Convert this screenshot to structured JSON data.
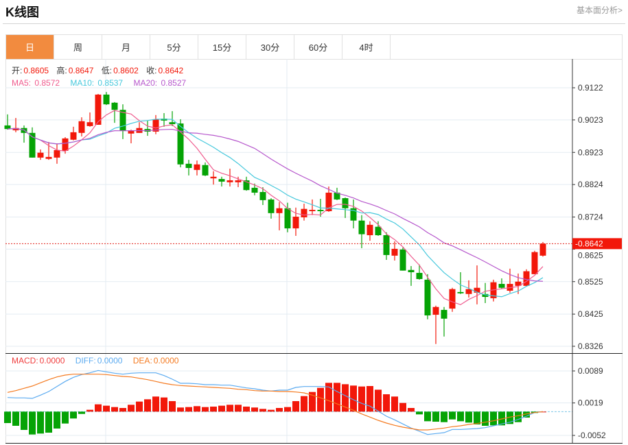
{
  "header": {
    "title": "K线图",
    "fundamental_link": "基本面分析>"
  },
  "tabs": [
    {
      "label": "日",
      "active": true
    },
    {
      "label": "周"
    },
    {
      "label": "月"
    },
    {
      "label": "5分"
    },
    {
      "label": "15分"
    },
    {
      "label": "30分"
    },
    {
      "label": "60分"
    },
    {
      "label": "4时"
    }
  ],
  "legend": {
    "open_label": "开:",
    "open": "0.8605",
    "high_label": "高:",
    "high": "0.8647",
    "low_label": "低:",
    "low": "0.8602",
    "close_label": "收:",
    "close": "0.8642",
    "ma5_label": "MA5: ",
    "ma5": "0.8572",
    "ma10_label": "MA10: ",
    "ma10": "0.8537",
    "ma20_label": "MA20: ",
    "ma20": "0.8527"
  },
  "macd_legend": {
    "macd_label": "MACD:",
    "macd": "0.0000",
    "diff_label": "DIFF:",
    "diff": "0.0000",
    "dea_label": "DEA:",
    "dea": "0.0000"
  },
  "current_price": "0.8642",
  "colors": {
    "up": "#f2180a",
    "down": "#05a305",
    "ma5": "#ef5b8e",
    "ma10": "#46c8dc",
    "ma20": "#b657cc",
    "diff": "#5aaaf0",
    "dea": "#f47a20",
    "accent": "#f28b3f"
  },
  "chart_data": [
    {
      "type": "candlestick",
      "price_ticks": [
        "0.9122",
        "0.9023",
        "0.8923",
        "0.8824",
        "0.8724",
        "0.8625",
        "0.8525",
        "0.8425",
        "0.8326"
      ],
      "ylim": [
        0.8326,
        0.9122
      ],
      "grid": true,
      "ohlc_order": [
        "open",
        "high",
        "low",
        "close"
      ],
      "candles": [
        [
          0.9006,
          0.904,
          0.8993,
          0.8995
        ],
        [
          0.8991,
          0.9029,
          0.8985,
          0.8998
        ],
        [
          0.8998,
          0.9006,
          0.8953,
          0.8983
        ],
        [
          0.8983,
          0.9,
          0.8907,
          0.8907
        ],
        [
          0.8907,
          0.8932,
          0.89,
          0.8922
        ],
        [
          0.8903,
          0.8955,
          0.89,
          0.8909
        ],
        [
          0.8907,
          0.8949,
          0.8888,
          0.893
        ],
        [
          0.8928,
          0.897,
          0.8919,
          0.8966
        ],
        [
          0.8962,
          0.9002,
          0.896,
          0.8985
        ],
        [
          0.8983,
          0.9031,
          0.8972,
          0.9019
        ],
        [
          0.9004,
          0.9046,
          0.9002,
          0.9016
        ],
        [
          0.9008,
          0.9103,
          0.9008,
          0.9101
        ],
        [
          0.9101,
          0.9109,
          0.9069,
          0.9071
        ],
        [
          0.9076,
          0.9078,
          0.9014,
          0.9054
        ],
        [
          0.9054,
          0.9071,
          0.8964,
          0.8989
        ],
        [
          0.8981,
          0.8993,
          0.8951,
          0.8991
        ],
        [
          0.8983,
          0.9016,
          0.8983,
          0.8998
        ],
        [
          0.8995,
          0.9021,
          0.8974,
          0.8987
        ],
        [
          0.8987,
          0.9038,
          0.8979,
          0.9025
        ],
        [
          0.9027,
          0.9044,
          0.9002,
          0.9021
        ],
        [
          0.9016,
          0.905,
          0.9004,
          0.901
        ],
        [
          0.9012,
          0.9025,
          0.8877,
          0.8886
        ],
        [
          0.8888,
          0.89,
          0.8852,
          0.8875
        ],
        [
          0.8869,
          0.8898,
          0.8852,
          0.8886
        ],
        [
          0.8884,
          0.8892,
          0.885,
          0.8852
        ],
        [
          0.8843,
          0.8865,
          0.8824,
          0.8848
        ],
        [
          0.8841,
          0.8848,
          0.8818,
          0.8833
        ],
        [
          0.8831,
          0.8873,
          0.8818,
          0.8837
        ],
        [
          0.8831,
          0.8848,
          0.8816,
          0.8837
        ],
        [
          0.8837,
          0.8848,
          0.8805,
          0.8807
        ],
        [
          0.8814,
          0.8827,
          0.8791,
          0.8799
        ],
        [
          0.8801,
          0.8816,
          0.8761,
          0.8776
        ],
        [
          0.8778,
          0.8782,
          0.8719,
          0.8736
        ],
        [
          0.8736,
          0.877,
          0.8683,
          0.8751
        ],
        [
          0.8751,
          0.8768,
          0.8677,
          0.8689
        ],
        [
          0.8689,
          0.8753,
          0.8666,
          0.8725
        ],
        [
          0.8723,
          0.8765,
          0.8713,
          0.8749
        ],
        [
          0.8742,
          0.8778,
          0.873,
          0.8746
        ],
        [
          0.8746,
          0.878,
          0.8725,
          0.8742
        ],
        [
          0.8742,
          0.8818,
          0.874,
          0.8799
        ],
        [
          0.8799,
          0.8814,
          0.8776,
          0.8778
        ],
        [
          0.8782,
          0.8784,
          0.8721,
          0.8751
        ],
        [
          0.8751,
          0.8778,
          0.8689,
          0.8713
        ],
        [
          0.8713,
          0.873,
          0.8628,
          0.8671
        ],
        [
          0.8668,
          0.8711,
          0.8651,
          0.87
        ],
        [
          0.8694,
          0.8711,
          0.8666,
          0.8668
        ],
        [
          0.8668,
          0.8677,
          0.8592,
          0.8607
        ],
        [
          0.8605,
          0.8649,
          0.859,
          0.8626
        ],
        [
          0.8624,
          0.863,
          0.8559,
          0.8559
        ],
        [
          0.8561,
          0.8573,
          0.8512,
          0.8554
        ],
        [
          0.8552,
          0.8578,
          0.8531,
          0.8533
        ],
        [
          0.8531,
          0.8548,
          0.8409,
          0.8421
        ],
        [
          0.8423,
          0.8451,
          0.8333,
          0.8447
        ],
        [
          0.8438,
          0.8447,
          0.8356,
          0.8411
        ],
        [
          0.8442,
          0.8506,
          0.8432,
          0.8502
        ],
        [
          0.8493,
          0.8554,
          0.8487,
          0.8489
        ],
        [
          0.8487,
          0.8529,
          0.8476,
          0.8502
        ],
        [
          0.8491,
          0.8575,
          0.8455,
          0.8506
        ],
        [
          0.8487,
          0.8521,
          0.8459,
          0.8478
        ],
        [
          0.8474,
          0.8531,
          0.8464,
          0.8523
        ],
        [
          0.8518,
          0.8535,
          0.8502,
          0.8506
        ],
        [
          0.8497,
          0.8565,
          0.8491,
          0.8518
        ],
        [
          0.8512,
          0.855,
          0.8487,
          0.8525
        ],
        [
          0.8512,
          0.8563,
          0.851,
          0.8557
        ],
        [
          0.8548,
          0.862,
          0.8548,
          0.8616
        ],
        [
          0.8605,
          0.8647,
          0.8602,
          0.8642
        ]
      ],
      "moving_averages": [
        5,
        10,
        20
      ]
    },
    {
      "type": "bar+line",
      "ticks": [
        "0.0089",
        "0.0019",
        "-0.0052"
      ],
      "ylim": [
        -0.0052,
        0.0089
      ],
      "macd_hist": [
        -0.0025,
        -0.0031,
        -0.004,
        -0.005,
        -0.0048,
        -0.0046,
        -0.0037,
        -0.0026,
        -0.0015,
        -0.0005,
        0.0004,
        0.0016,
        0.0013,
        0.001,
        0.0008,
        0.0015,
        0.0022,
        0.0027,
        0.0033,
        0.0031,
        0.0023,
        0.0009,
        0.001,
        0.0012,
        0.001,
        0.0011,
        0.0013,
        0.0015,
        0.0015,
        0.0011,
        0.0009,
        0.0006,
        0.0004,
        0.0008,
        0.001,
        0.0023,
        0.0034,
        0.0043,
        0.0052,
        0.0063,
        0.0063,
        0.006,
        0.0057,
        0.0055,
        0.0056,
        0.0048,
        0.0038,
        0.0033,
        0.0019,
        0.0008,
        -0.0006,
        -0.0021,
        -0.0022,
        -0.0023,
        -0.0017,
        -0.0021,
        -0.0024,
        -0.0028,
        -0.0031,
        -0.003,
        -0.003,
        -0.0027,
        -0.0023,
        -0.0013,
        -0.0003,
        0.0
      ],
      "diff": [
        0.0031,
        0.003,
        0.003,
        0.0029,
        0.0036,
        0.0044,
        0.0055,
        0.0066,
        0.0075,
        0.0081,
        0.0085,
        0.009,
        0.0087,
        0.0084,
        0.0082,
        0.0084,
        0.0085,
        0.0085,
        0.0085,
        0.0079,
        0.0071,
        0.0062,
        0.0062,
        0.0061,
        0.0059,
        0.0059,
        0.0058,
        0.0058,
        0.0055,
        0.0052,
        0.005,
        0.0047,
        0.0045,
        0.0047,
        0.0047,
        0.0053,
        0.0055,
        0.0055,
        0.0055,
        0.0054,
        0.0044,
        0.0035,
        0.0026,
        0.0018,
        0.0012,
        0.0001,
        -0.001,
        -0.0018,
        -0.0027,
        -0.0036,
        -0.0043,
        -0.005,
        -0.0048,
        -0.0046,
        -0.0039,
        -0.0039,
        -0.0038,
        -0.0037,
        -0.0035,
        -0.0031,
        -0.0027,
        -0.0023,
        -0.0017,
        -0.001,
        -0.0002,
        0.0
      ],
      "dea": [
        0.0042,
        0.0046,
        0.0051,
        0.0056,
        0.0063,
        0.007,
        0.0076,
        0.008,
        0.0082,
        0.0082,
        0.0082,
        0.0082,
        0.0081,
        0.0079,
        0.0077,
        0.0076,
        0.0073,
        0.007,
        0.0066,
        0.0062,
        0.0059,
        0.0057,
        0.0056,
        0.0055,
        0.0054,
        0.0053,
        0.0052,
        0.0051,
        0.0049,
        0.0048,
        0.0046,
        0.0045,
        0.0045,
        0.0044,
        0.0044,
        0.0043,
        0.0041,
        0.0036,
        0.003,
        0.0024,
        0.0017,
        0.001,
        0.0003,
        -0.0005,
        -0.0012,
        -0.0019,
        -0.0025,
        -0.003,
        -0.0034,
        -0.0037,
        -0.004,
        -0.004,
        -0.0038,
        -0.0036,
        -0.0033,
        -0.0031,
        -0.0028,
        -0.0026,
        -0.0023,
        -0.002,
        -0.0016,
        -0.0012,
        -0.0009,
        -0.0005,
        -0.0002,
        0.0
      ]
    }
  ]
}
